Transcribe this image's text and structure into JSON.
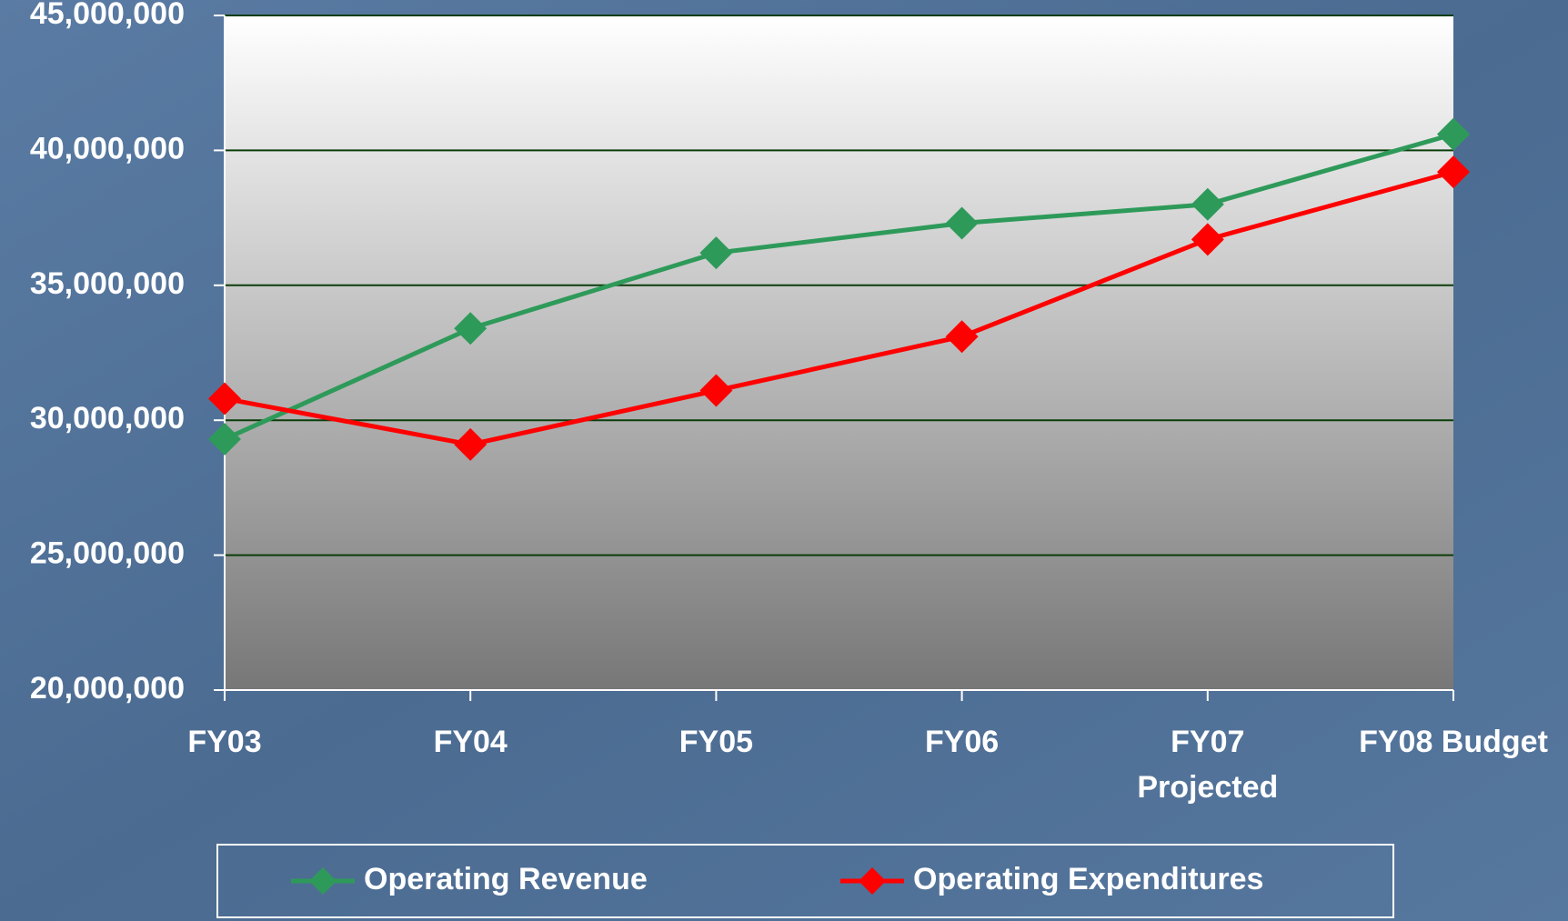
{
  "chart_data": {
    "type": "line",
    "categories": [
      "FY03",
      "FY04",
      "FY05",
      "FY06",
      "FY07\nProjected",
      "FY08 Budget"
    ],
    "series": [
      {
        "name": "Operating Revenue",
        "color": "#2e9a5a",
        "values": [
          29300000,
          33400000,
          36200000,
          37300000,
          38000000,
          40600000
        ]
      },
      {
        "name": "Operating Expenditures",
        "color": "#ff0000",
        "values": [
          30800000,
          29100000,
          31100000,
          33100000,
          36700000,
          39200000
        ]
      }
    ],
    "ylim": [
      20000000,
      45000000
    ],
    "yticks": [
      {
        "value": 20000000,
        "label": "20,000,000"
      },
      {
        "value": 25000000,
        "label": "25,000,000"
      },
      {
        "value": 30000000,
        "label": "30,000,000"
      },
      {
        "value": 35000000,
        "label": "35,000,000"
      },
      {
        "value": 40000000,
        "label": "40,000,000"
      },
      {
        "value": 45000000,
        "label": "45,000,000"
      }
    ],
    "grid": true,
    "legend": "bottom"
  }
}
